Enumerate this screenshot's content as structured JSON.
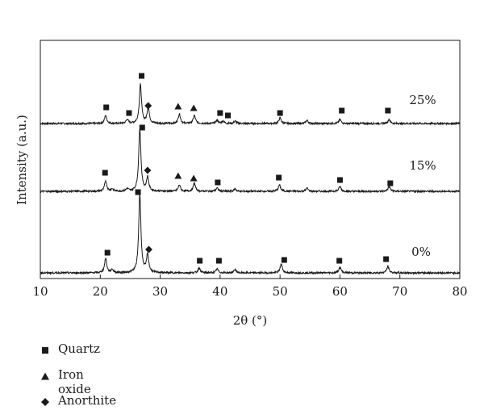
{
  "chart_data": {
    "type": "line",
    "xlabel": "2θ (°)",
    "ylabel": "Intensity (a.u.)",
    "xlim": [
      10,
      80
    ],
    "xticks": [
      10,
      20,
      30,
      40,
      50,
      60,
      70,
      80
    ],
    "yticks_shown": false,
    "grid": false,
    "legend_position": "bottom-left",
    "series": [
      {
        "name": "25%",
        "peaks": [
          {
            "x": 20.9,
            "h": 10
          },
          {
            "x": 24.5,
            "h": 5
          },
          {
            "x": 26.7,
            "h": 48
          },
          {
            "x": 28.0,
            "h": 20
          },
          {
            "x": 33.2,
            "h": 12
          },
          {
            "x": 35.7,
            "h": 10
          },
          {
            "x": 39.5,
            "h": 4
          },
          {
            "x": 40.5,
            "h": 3
          },
          {
            "x": 42.5,
            "h": 3
          },
          {
            "x": 50.0,
            "h": 7
          },
          {
            "x": 54.5,
            "h": 4
          },
          {
            "x": 60.0,
            "h": 5
          },
          {
            "x": 68.2,
            "h": 5
          }
        ],
        "markers": [
          {
            "x": 21.0,
            "symbol": "quartz",
            "y": 133
          },
          {
            "x": 24.8,
            "symbol": "quartz",
            "y": 140
          },
          {
            "x": 26.9,
            "symbol": "quartz",
            "y": 94
          },
          {
            "x": 28.0,
            "symbol": "anorthite",
            "y": 131
          },
          {
            "x": 33.0,
            "symbol": "iron_oxide",
            "y": 132
          },
          {
            "x": 35.6,
            "symbol": "iron_oxide",
            "y": 134
          },
          {
            "x": 40.0,
            "symbol": "quartz",
            "y": 140
          },
          {
            "x": 41.3,
            "symbol": "quartz",
            "y": 143
          },
          {
            "x": 50.0,
            "symbol": "quartz",
            "y": 140
          },
          {
            "x": 60.3,
            "symbol": "quartz",
            "y": 137
          },
          {
            "x": 68.0,
            "symbol": "quartz",
            "y": 137
          }
        ]
      },
      {
        "name": "15%",
        "peaks": [
          {
            "x": 20.9,
            "h": 13
          },
          {
            "x": 22.0,
            "h": 3
          },
          {
            "x": 24.5,
            "h": 3
          },
          {
            "x": 26.6,
            "h": 78
          },
          {
            "x": 27.9,
            "h": 17
          },
          {
            "x": 33.2,
            "h": 8
          },
          {
            "x": 35.7,
            "h": 10
          },
          {
            "x": 39.5,
            "h": 4
          },
          {
            "x": 42.5,
            "h": 3
          },
          {
            "x": 49.9,
            "h": 8
          },
          {
            "x": 54.5,
            "h": 4
          },
          {
            "x": 60.0,
            "h": 6
          },
          {
            "x": 68.2,
            "h": 6
          }
        ],
        "markers": [
          {
            "x": 20.8,
            "symbol": "quartz",
            "y": 214
          },
          {
            "x": 27.0,
            "symbol": "quartz",
            "y": 158
          },
          {
            "x": 27.9,
            "symbol": "anorthite",
            "y": 211
          },
          {
            "x": 33.0,
            "symbol": "iron_oxide",
            "y": 218
          },
          {
            "x": 35.6,
            "symbol": "iron_oxide",
            "y": 221
          },
          {
            "x": 39.6,
            "symbol": "quartz",
            "y": 226
          },
          {
            "x": 49.8,
            "symbol": "quartz",
            "y": 220
          },
          {
            "x": 60.0,
            "symbol": "quartz",
            "y": 223
          },
          {
            "x": 68.4,
            "symbol": "quartz",
            "y": 227
          }
        ]
      },
      {
        "name": "0%",
        "peaks": [
          {
            "x": 20.9,
            "h": 18
          },
          {
            "x": 22.0,
            "h": 4
          },
          {
            "x": 26.6,
            "h": 98
          },
          {
            "x": 27.9,
            "h": 22
          },
          {
            "x": 36.5,
            "h": 6
          },
          {
            "x": 39.5,
            "h": 5
          },
          {
            "x": 42.5,
            "h": 4
          },
          {
            "x": 50.2,
            "h": 11
          },
          {
            "x": 60.0,
            "h": 7
          },
          {
            "x": 68.0,
            "h": 8
          }
        ],
        "markers": [
          {
            "x": 21.2,
            "symbol": "quartz",
            "y": 313
          },
          {
            "x": 26.3,
            "symbol": "quartz",
            "y": 238
          },
          {
            "x": 28.1,
            "symbol": "anorthite",
            "y": 309
          },
          {
            "x": 36.6,
            "symbol": "quartz",
            "y": 323
          },
          {
            "x": 39.8,
            "symbol": "quartz",
            "y": 323
          },
          {
            "x": 50.7,
            "symbol": "quartz",
            "y": 322
          },
          {
            "x": 59.9,
            "symbol": "quartz",
            "y": 323
          },
          {
            "x": 67.7,
            "symbol": "quartz",
            "y": 321
          }
        ]
      }
    ],
    "legend": [
      {
        "symbol": "quartz",
        "label": "Quartz"
      },
      {
        "symbol": "iron_oxide",
        "label": "Iron oxide"
      },
      {
        "symbol": "anorthite",
        "label": "Anorthite"
      }
    ]
  }
}
